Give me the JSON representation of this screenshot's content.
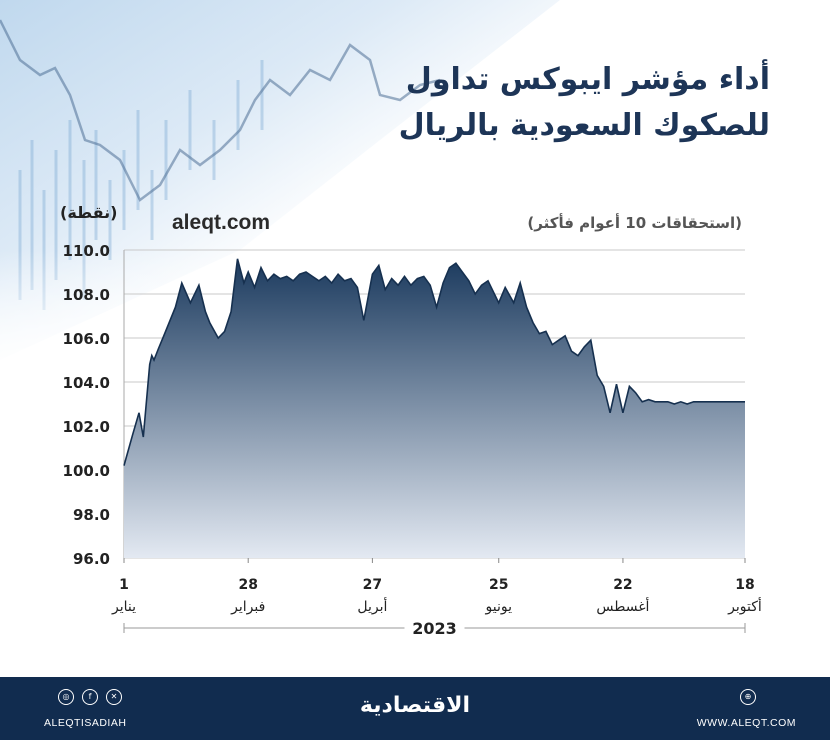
{
  "title_line1": "أداء مؤشر ايبوكس تداول",
  "title_line2": "للصكوك السعودية بالريال",
  "unit_label": "(نقطة)",
  "website_watermark": "aleqt.com",
  "subtitle": "(استحقاقات 10 أعوام فأكثر)",
  "chart_data": {
    "type": "area",
    "title": "أداء مؤشر ايبوكس تداول للصكوك السعودية بالريال",
    "subtitle": "(استحقاقات 10 أعوام فأكثر)",
    "ylabel": "(نقطة)",
    "ylim": [
      96,
      110
    ],
    "yticks": [
      "110.0",
      "108.0",
      "106.0",
      "104.0",
      "102.0",
      "100.0",
      "98.0",
      "96.0"
    ],
    "xticks": [
      {
        "day": "1",
        "month": "يناير"
      },
      {
        "day": "28",
        "month": "فبراير"
      },
      {
        "day": "27",
        "month": "أبريل"
      },
      {
        "day": "25",
        "month": "يونيو"
      },
      {
        "day": "22",
        "month": "أغسطس"
      },
      {
        "day": "18",
        "month": "أكتوبر"
      }
    ],
    "year": "2023",
    "grid": true,
    "colors": {
      "fill_top": "#1b3a5e",
      "fill_bottom": "#e3e9f2",
      "line": "#16304f"
    },
    "x": [
      "01-01",
      "01-05",
      "01-08",
      "01-10",
      "01-13",
      "01-14",
      "01-15",
      "01-17",
      "01-20",
      "01-25",
      "01-28",
      "02-01",
      "02-05",
      "02-08",
      "02-10",
      "02-14",
      "02-17",
      "02-20",
      "02-23",
      "02-26",
      "02-28",
      "03-03",
      "03-06",
      "03-09",
      "03-12",
      "03-15",
      "03-18",
      "03-21",
      "03-24",
      "03-27",
      "03-30",
      "04-02",
      "04-05",
      "04-08",
      "04-11",
      "04-14",
      "04-17",
      "04-20",
      "04-23",
      "04-27",
      "04-30",
      "05-03",
      "05-06",
      "05-09",
      "05-12",
      "05-15",
      "05-18",
      "05-21",
      "05-24",
      "05-27",
      "05-30",
      "06-02",
      "06-05",
      "06-08",
      "06-11",
      "06-14",
      "06-17",
      "06-20",
      "06-25",
      "06-28",
      "07-02",
      "07-05",
      "07-08",
      "07-11",
      "07-14",
      "07-17",
      "07-20",
      "07-23",
      "07-26",
      "07-29",
      "08-01",
      "08-04",
      "08-07",
      "08-10",
      "08-13",
      "08-16",
      "08-19",
      "08-22",
      "08-25",
      "08-28",
      "08-31",
      "09-03",
      "09-06",
      "09-09",
      "09-12",
      "09-15",
      "09-18",
      "09-21",
      "09-24",
      "09-27",
      "09-30",
      "10-03",
      "10-06",
      "10-09",
      "10-12",
      "10-15",
      "10-18"
    ],
    "values": [
      100.2,
      101.6,
      102.6,
      101.5,
      104.8,
      105.2,
      105.0,
      105.5,
      106.2,
      107.4,
      108.5,
      107.6,
      108.4,
      107.2,
      106.7,
      106.0,
      106.3,
      107.2,
      109.6,
      108.5,
      109.0,
      108.3,
      109.2,
      108.6,
      108.9,
      108.7,
      108.8,
      108.6,
      108.9,
      109.0,
      108.8,
      108.6,
      108.8,
      108.5,
      108.9,
      108.6,
      108.7,
      108.3,
      106.8,
      108.9,
      109.3,
      108.2,
      108.7,
      108.4,
      108.8,
      108.4,
      108.7,
      108.8,
      108.4,
      107.4,
      108.5,
      109.2,
      109.4,
      109.0,
      108.6,
      108.0,
      108.4,
      108.6,
      107.6,
      108.3,
      107.6,
      108.5,
      107.4,
      106.7,
      106.2,
      106.3,
      105.7,
      105.9,
      106.1,
      105.4,
      105.2,
      105.6,
      105.9,
      104.3,
      103.8,
      102.6,
      103.9,
      102.6,
      103.8,
      103.5,
      103.1,
      103.2,
      103.1,
      103.1,
      103.1,
      103.0,
      103.1,
      103.0,
      103.1,
      103.1,
      103.1,
      103.1,
      103.1,
      103.1,
      103.1,
      103.1,
      103.1
    ]
  },
  "footer": {
    "handle": "ALEQTISADIAH",
    "brand": "الاقتصادية",
    "website": "WWW.ALEQT.COM",
    "icons": [
      "instagram-icon",
      "facebook-icon",
      "x-icon",
      "globe-icon"
    ]
  }
}
